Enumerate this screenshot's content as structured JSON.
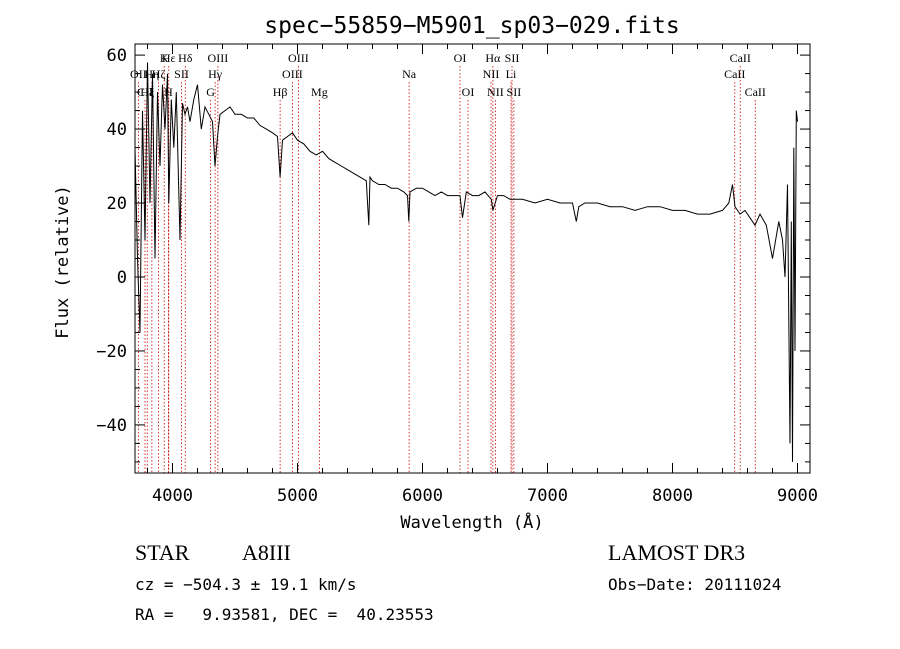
{
  "chart_data": {
    "type": "line",
    "title": "spec−55859−M5901_sp03−029.fits",
    "xlabel": "Wavelength (Å)",
    "ylabel": "Flux (relative)",
    "xlim": [
      3700,
      9100
    ],
    "ylim": [
      -53,
      63
    ],
    "x_ticks": [
      4000,
      5000,
      6000,
      7000,
      8000,
      9000
    ],
    "y_ticks": [
      -40,
      -20,
      0,
      20,
      40,
      60
    ],
    "x_tick_labels": [
      "4000",
      "5000",
      "6000",
      "7000",
      "8000",
      "9000"
    ],
    "y_tick_labels": [
      "−40",
      "−20",
      "0",
      "20",
      "40",
      "60"
    ],
    "series": [
      {
        "name": "flux",
        "x": [
          3700,
          3720,
          3740,
          3760,
          3780,
          3800,
          3820,
          3840,
          3860,
          3880,
          3900,
          3920,
          3940,
          3960,
          3970,
          3990,
          4010,
          4030,
          4060,
          4080,
          4100,
          4120,
          4140,
          4170,
          4200,
          4230,
          4260,
          4290,
          4320,
          4340,
          4360,
          4380,
          4420,
          4460,
          4500,
          4550,
          4600,
          4650,
          4700,
          4750,
          4800,
          4840,
          4861,
          4880,
          4920,
          4960,
          5000,
          5050,
          5100,
          5150,
          5200,
          5250,
          5300,
          5350,
          5400,
          5450,
          5500,
          5550,
          5570,
          5580,
          5600,
          5650,
          5700,
          5750,
          5800,
          5850,
          5880,
          5890,
          5900,
          5950,
          6000,
          6050,
          6100,
          6150,
          6200,
          6250,
          6300,
          6320,
          6350,
          6400,
          6450,
          6500,
          6550,
          6563,
          6600,
          6650,
          6700,
          6750,
          6800,
          6900,
          7000,
          7100,
          7200,
          7230,
          7250,
          7300,
          7400,
          7500,
          7600,
          7700,
          7800,
          7900,
          8000,
          8100,
          8200,
          8300,
          8400,
          8450,
          8480,
          8500,
          8540,
          8580,
          8620,
          8660,
          8700,
          8750,
          8800,
          8850,
          8880,
          8900,
          8920,
          8940,
          8950,
          8960,
          8970,
          8980,
          8990,
          9000
        ],
        "values": [
          35,
          5,
          -15,
          45,
          10,
          58,
          20,
          55,
          5,
          50,
          30,
          52,
          40,
          55,
          20,
          48,
          35,
          50,
          10,
          47,
          44,
          46,
          42,
          48,
          52,
          40,
          46,
          44,
          42,
          30,
          38,
          44,
          45,
          46,
          44,
          44,
          43,
          43,
          41,
          40,
          39,
          38,
          27,
          37,
          38,
          39,
          37,
          36,
          34,
          33,
          34,
          32,
          31,
          30,
          29,
          28,
          27,
          26,
          14,
          27,
          26,
          25,
          25,
          24,
          24,
          23,
          22,
          15,
          23,
          24,
          24,
          23,
          22,
          23,
          22,
          22,
          22,
          16,
          23,
          22,
          22,
          23,
          21,
          18,
          22,
          22,
          21,
          21,
          21,
          20,
          21,
          20,
          20,
          15,
          19,
          20,
          20,
          19,
          19,
          18,
          19,
          19,
          18,
          18,
          17,
          17,
          18,
          20,
          25,
          19,
          17,
          18,
          16,
          14,
          17,
          14,
          5,
          15,
          10,
          0,
          25,
          -45,
          15,
          -50,
          35,
          -20,
          45,
          42
        ]
      }
    ],
    "spectral_lines": [
      {
        "label": "Hε",
        "x": 3970,
        "row": 1
      },
      {
        "label": "K",
        "x": 3934,
        "row": 1
      },
      {
        "label": "Hδ",
        "x": 4102,
        "row": 1
      },
      {
        "label": "OIII",
        "x": 4363,
        "row": 1
      },
      {
        "label": "OII",
        "x": 3727,
        "row": 2
      },
      {
        "label": "Hη",
        "x": 3835,
        "row": 2
      },
      {
        "label": "Hζ",
        "x": 3889,
        "row": 2
      },
      {
        "label": "SII",
        "x": 4072,
        "row": 2
      },
      {
        "label": "Hγ",
        "x": 4341,
        "row": 2
      },
      {
        "label": "CII",
        "x": 3780,
        "row": 3
      },
      {
        "label": "Hξ",
        "x": 3798,
        "row": 3
      },
      {
        "label": "H",
        "x": 3968,
        "row": 3
      },
      {
        "label": "G",
        "x": 4305,
        "row": 3
      },
      {
        "label": "OIII",
        "x": 5007,
        "row": 1
      },
      {
        "label": "OIII",
        "x": 4959,
        "row": 2
      },
      {
        "label": "Hβ",
        "x": 4861,
        "row": 3
      },
      {
        "label": "Mg",
        "x": 5175,
        "row": 3
      },
      {
        "label": "Na",
        "x": 5893,
        "row": 2
      },
      {
        "label": "OI",
        "x": 6300,
        "row": 1
      },
      {
        "label": "OI",
        "x": 6364,
        "row": 3
      },
      {
        "label": "Hα",
        "x": 6563,
        "row": 1
      },
      {
        "label": "SII",
        "x": 6716,
        "row": 1
      },
      {
        "label": "NII",
        "x": 6548,
        "row": 2
      },
      {
        "label": "Li",
        "x": 6708,
        "row": 2
      },
      {
        "label": "NII",
        "x": 6583,
        "row": 3
      },
      {
        "label": "SII",
        "x": 6731,
        "row": 3
      },
      {
        "label": "CaII",
        "x": 8542,
        "row": 1
      },
      {
        "label": "CaII",
        "x": 8498,
        "row": 2
      },
      {
        "label": "CaII",
        "x": 8662,
        "row": 3
      }
    ]
  },
  "info": {
    "object_class": "STAR",
    "subclass": "A8III",
    "survey": "LAMOST DR3",
    "redshift_line": "cz = −504.3 ± 19.1 km/s",
    "obs_date_line": "Obs−Date: 20111024",
    "coords_line": "RA =   9.93581, DEC =  40.23553"
  },
  "colors": {
    "axis": "#000000",
    "spectrum": "#000000",
    "line_marker": "#cc0000",
    "background": "#ffffff"
  }
}
